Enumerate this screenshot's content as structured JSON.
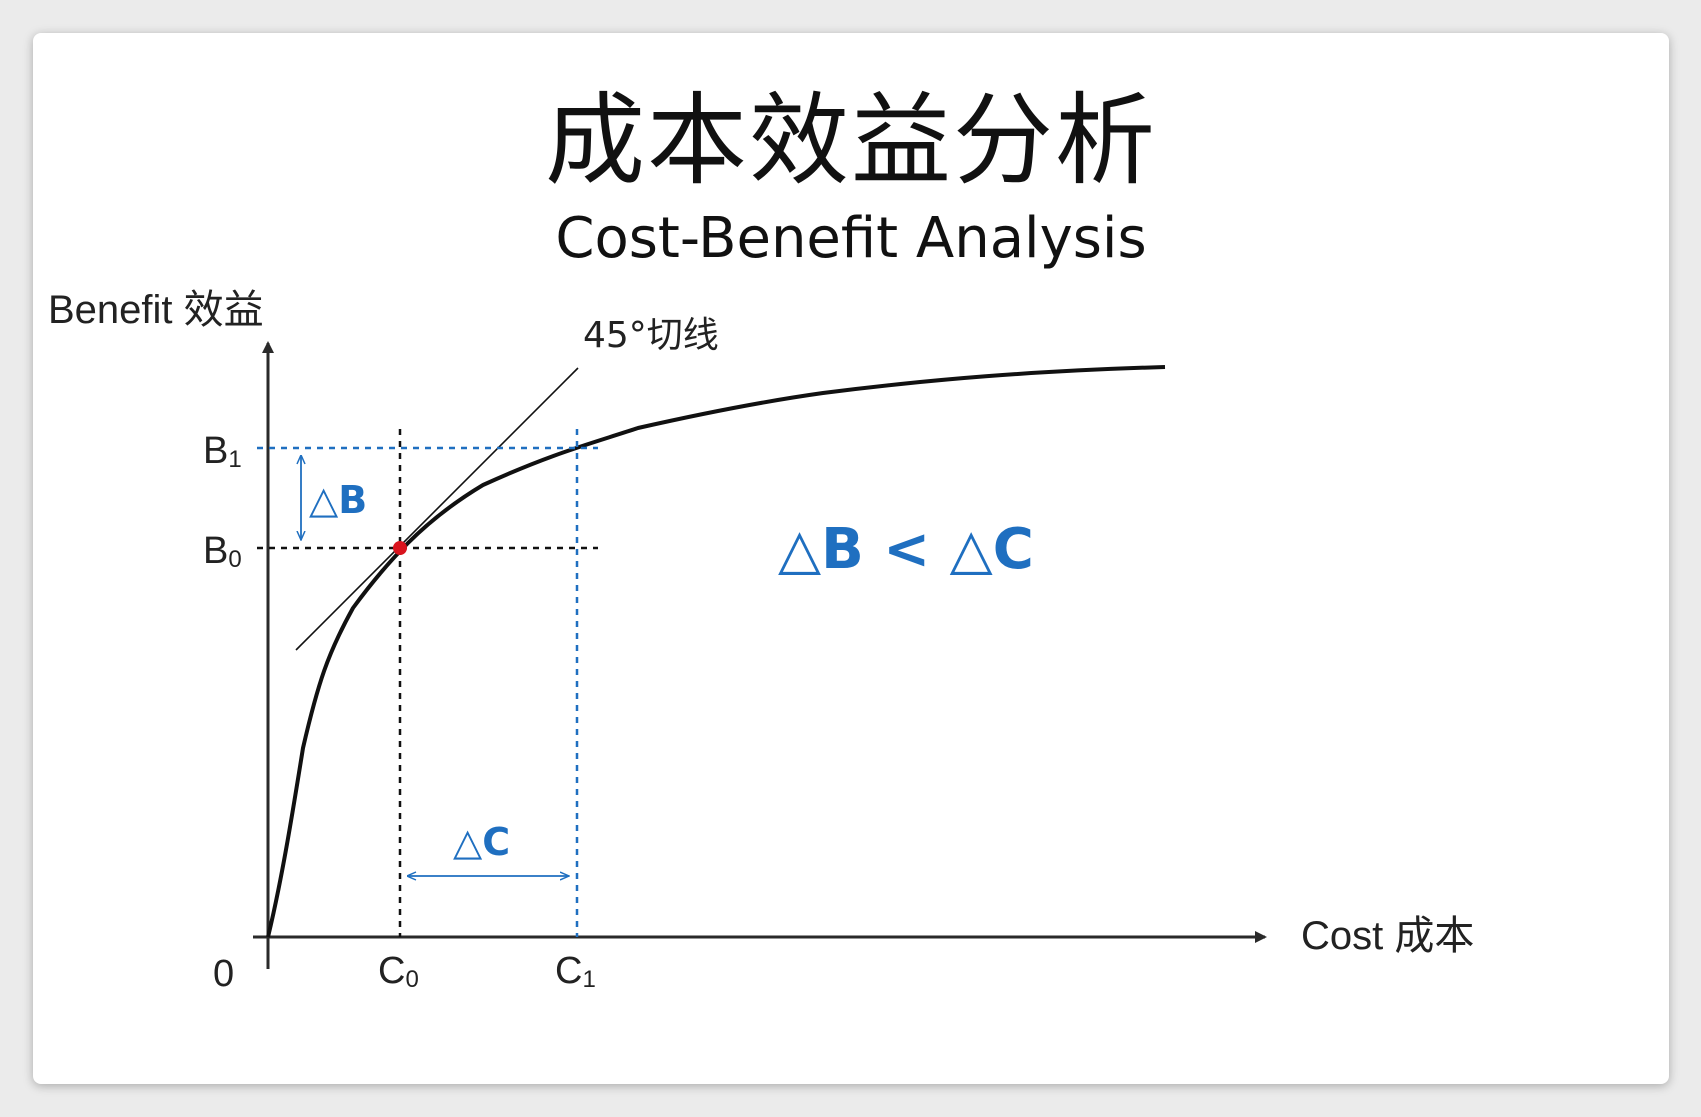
{
  "title": "成本效益分析",
  "subtitle": "Cost-Benefit Analysis",
  "y_axis_label": "Benefit 效益",
  "x_axis_label": "Cost 成本",
  "origin_label": "0",
  "tangent_label": "45°切线",
  "y_ticks": {
    "b1": {
      "base": "B",
      "sub": "1"
    },
    "b0": {
      "base": "B",
      "sub": "0"
    }
  },
  "x_ticks": {
    "c0": {
      "base": "C",
      "sub": "0"
    },
    "c1": {
      "base": "C",
      "sub": "1"
    }
  },
  "delta_b": "△B",
  "delta_c": "△C",
  "inequality": "△B < △C",
  "colors": {
    "accent_blue": "#1f6fc0",
    "point_red": "#d9141e",
    "curve": "#111111"
  }
}
